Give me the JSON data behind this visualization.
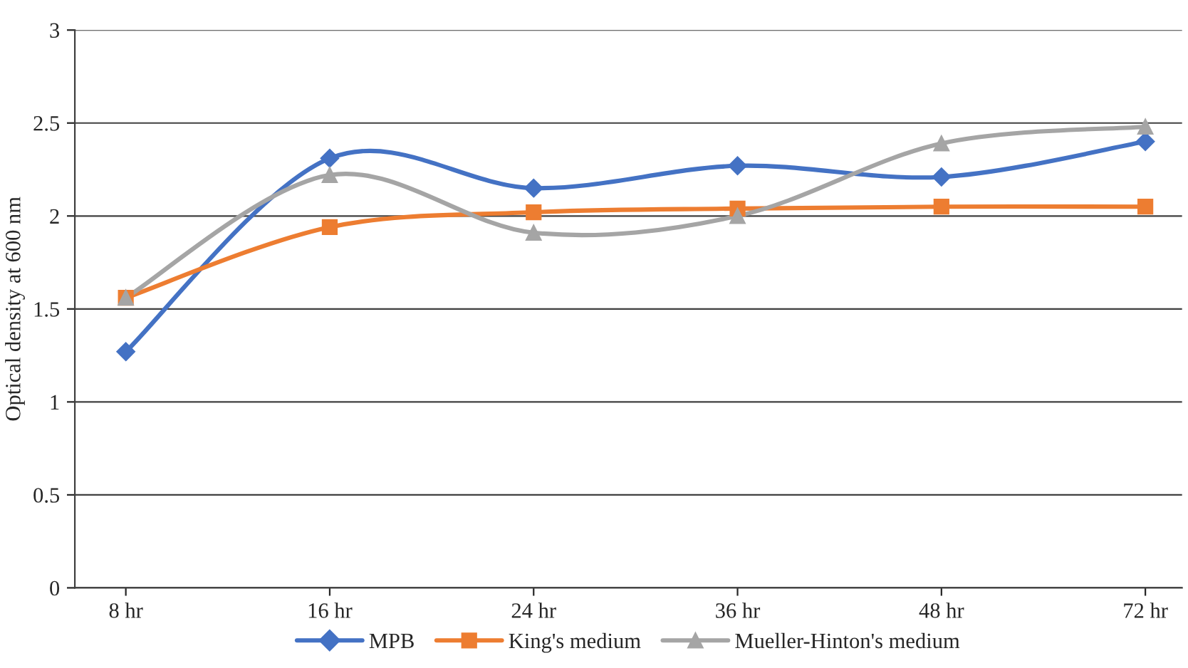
{
  "chart_data": {
    "type": "line",
    "ylabel": "Optical density at 600 nm",
    "categories": [
      "8 hr",
      "16 hr",
      "24 hr",
      "36 hr",
      "48 hr",
      "72 hr"
    ],
    "series": [
      {
        "name": "MPB",
        "color": "#4472c4",
        "marker": "diamond",
        "values": [
          1.27,
          2.31,
          2.15,
          2.27,
          2.21,
          2.4
        ]
      },
      {
        "name": "King's medium",
        "color": "#ed7d31",
        "marker": "square",
        "values": [
          1.56,
          1.94,
          2.02,
          2.04,
          2.05,
          2.05
        ]
      },
      {
        "name": "Mueller-Hinton's medium",
        "color": "#a5a5a5",
        "marker": "triangle",
        "values": [
          1.56,
          2.22,
          1.91,
          2.0,
          2.39,
          2.48
        ]
      }
    ],
    "ylim": [
      0,
      3
    ],
    "yticks": [
      0,
      0.5,
      1,
      1.5,
      2,
      2.5,
      3
    ],
    "grid": "y",
    "legend": "bottom",
    "line_style": "solid"
  }
}
